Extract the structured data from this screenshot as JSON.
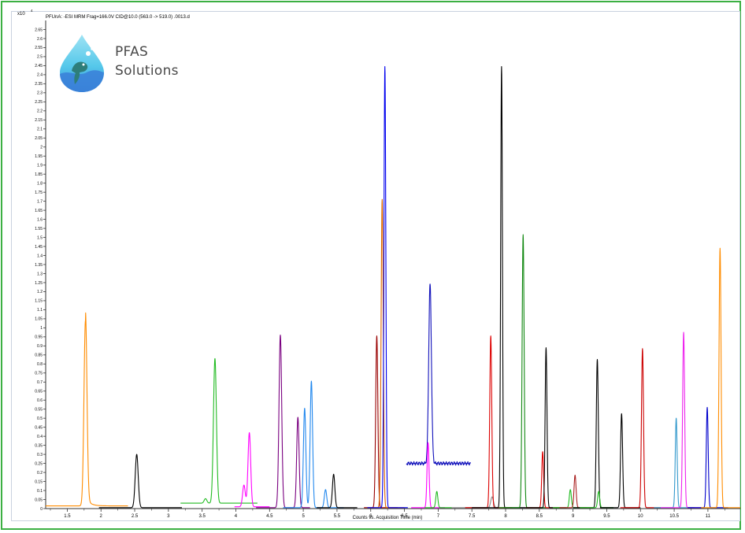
{
  "chart_title": "PFUnA: -ESI MRM Frag=166.0V CID@10.0 (563.0 -> 519.0) .0013.d",
  "y_multiplier": {
    "base": "x10",
    "exp": "4"
  },
  "logo": {
    "line1": "PFAS",
    "line2": "Solutions"
  },
  "colors": {
    "frame": "#3cb043",
    "axis": "#333333"
  },
  "chart_data": {
    "type": "line",
    "xlabel": "Counts vs. Acquisition Time (min)",
    "ylabel": "",
    "xlim": [
      1.18,
      11.48
    ],
    "ylim": [
      0,
      2.7
    ],
    "x_ticks": [
      "1.5",
      "2",
      "2.5",
      "3",
      "3.5",
      "4",
      "4.5",
      "5",
      "5.5",
      "6",
      "6.5",
      "7",
      "7.5",
      "8",
      "8.5",
      "9",
      "9.5",
      "10",
      "10.5",
      "11"
    ],
    "y_ticks": [
      "0",
      "0.05",
      "0.1",
      "0.15",
      "0.2",
      "0.25",
      "0.3",
      "0.35",
      "0.4",
      "0.45",
      "0.5",
      "0.55",
      "0.6",
      "0.65",
      "0.7",
      "0.75",
      "0.8",
      "0.85",
      "0.9",
      "0.95",
      "1",
      "1.05",
      "1.1",
      "1.15",
      "1.2",
      "1.25",
      "1.3",
      "1.35",
      "1.4",
      "1.45",
      "1.5",
      "1.55",
      "1.6",
      "1.65",
      "1.7",
      "1.75",
      "1.8",
      "1.85",
      "1.9",
      "1.95",
      "2",
      "2.05",
      "2.1",
      "2.15",
      "2.2",
      "2.25",
      "2.3",
      "2.35",
      "2.4",
      "2.45",
      "2.5",
      "2.55",
      "2.6",
      "2.65"
    ],
    "grid": false,
    "series": [
      {
        "color": "#ff8c00",
        "x_range": [
          1.18,
          2.4
        ],
        "baseline": 0.015,
        "peaks": [
          {
            "x": 1.77,
            "h": 1.025,
            "w": 0.022,
            "tail": 0.06
          }
        ]
      },
      {
        "color": "#000000",
        "x_range": [
          1.97,
          3.2
        ],
        "baseline": 0.005,
        "peaks": [
          {
            "x": 2.53,
            "h": 0.295,
            "w": 0.022
          }
        ]
      },
      {
        "color": "#22bb22",
        "x_range": [
          3.18,
          4.32
        ],
        "baseline": 0.03,
        "peaks": [
          {
            "x": 3.55,
            "h": 0.025,
            "w": 0.02
          },
          {
            "x": 3.69,
            "h": 0.8,
            "w": 0.022
          }
        ]
      },
      {
        "color": "#ff00ff",
        "x_range": [
          3.98,
          4.5
        ],
        "baseline": 0.01,
        "peaks": [
          {
            "x": 4.12,
            "h": 0.12,
            "w": 0.02
          },
          {
            "x": 4.2,
            "h": 0.41,
            "w": 0.02
          }
        ]
      },
      {
        "color": "#7a0080",
        "x_range": [
          4.3,
          5.1
        ],
        "baseline": 0.005,
        "peaks": [
          {
            "x": 4.66,
            "h": 0.955,
            "w": 0.02
          },
          {
            "x": 4.92,
            "h": 0.5,
            "w": 0.018
          }
        ]
      },
      {
        "color": "#2288ee",
        "x_range": [
          4.7,
          5.6
        ],
        "baseline": 0.005,
        "peaks": [
          {
            "x": 5.02,
            "h": 0.55,
            "w": 0.018
          },
          {
            "x": 5.12,
            "h": 0.7,
            "w": 0.018
          },
          {
            "x": 5.33,
            "h": 0.1,
            "w": 0.018
          }
        ]
      },
      {
        "color": "#000000",
        "x_range": [
          5.2,
          5.8
        ],
        "baseline": 0.005,
        "peaks": [
          {
            "x": 5.45,
            "h": 0.185,
            "w": 0.018
          }
        ]
      },
      {
        "color": "#990000",
        "x_range": [
          5.9,
          6.4
        ],
        "baseline": 0.005,
        "peaks": [
          {
            "x": 6.09,
            "h": 0.95,
            "w": 0.016
          }
        ]
      },
      {
        "color": "#dd6600",
        "x_range": [
          5.95,
          6.5
        ],
        "baseline": 0.005,
        "peaks": [
          {
            "x": 6.17,
            "h": 1.705,
            "w": 0.016
          }
        ]
      },
      {
        "color": "#0000ee",
        "x_range": [
          5.95,
          6.55
        ],
        "baseline": 0.005,
        "peaks": [
          {
            "x": 6.21,
            "h": 2.44,
            "w": 0.014
          }
        ]
      },
      {
        "color": "#1111bb",
        "x_range": [
          6.53,
          7.48
        ],
        "baseline": 0.25,
        "noise": 0.01,
        "peaks": [
          {
            "x": 6.88,
            "h": 0.99,
            "w": 0.02
          }
        ]
      },
      {
        "color": "#ff00ff",
        "x_range": [
          6.6,
          7.1
        ],
        "baseline": 0.005,
        "peaks": [
          {
            "x": 6.85,
            "h": 0.36,
            "w": 0.015
          }
        ]
      },
      {
        "color": "#22bb22",
        "x_range": [
          6.8,
          7.2
        ],
        "baseline": 0.005,
        "peaks": [
          {
            "x": 6.98,
            "h": 0.09,
            "w": 0.015
          }
        ]
      },
      {
        "color": "#888888",
        "x_range": [
          7.2,
          8.4
        ],
        "baseline": 0.005,
        "peaks": [
          {
            "x": 7.8,
            "h": 0.06,
            "w": 0.02
          }
        ]
      },
      {
        "color": "#dd0000",
        "x_range": [
          7.4,
          8.1
        ],
        "baseline": 0.005,
        "peaks": [
          {
            "x": 7.78,
            "h": 0.95,
            "w": 0.015
          }
        ]
      },
      {
        "color": "#000000",
        "x_range": [
          7.5,
          8.3
        ],
        "baseline": 0.005,
        "peaks": [
          {
            "x": 7.94,
            "h": 2.44,
            "w": 0.013
          }
        ]
      },
      {
        "color": "#118811",
        "x_range": [
          7.9,
          8.6
        ],
        "baseline": 0.005,
        "peaks": [
          {
            "x": 8.26,
            "h": 1.51,
            "w": 0.015
          }
        ]
      },
      {
        "color": "#dd0000",
        "x_range": [
          8.3,
          8.8
        ],
        "baseline": 0.005,
        "peaks": [
          {
            "x": 8.55,
            "h": 0.31,
            "w": 0.014
          }
        ]
      },
      {
        "color": "#000000",
        "x_range": [
          8.3,
          8.9
        ],
        "baseline": 0.005,
        "peaks": [
          {
            "x": 8.6,
            "h": 0.885,
            "w": 0.014
          }
        ]
      },
      {
        "color": "#22bb22",
        "x_range": [
          8.7,
          9.2
        ],
        "baseline": 0.005,
        "peaks": [
          {
            "x": 8.96,
            "h": 0.1,
            "w": 0.015
          }
        ]
      },
      {
        "color": "#aa2222",
        "x_range": [
          8.8,
          9.3
        ],
        "baseline": 0.005,
        "peaks": [
          {
            "x": 9.03,
            "h": 0.18,
            "w": 0.015
          }
        ]
      },
      {
        "color": "#000000",
        "x_range": [
          9.0,
          9.6
        ],
        "baseline": 0.005,
        "peaks": [
          {
            "x": 9.36,
            "h": 0.82,
            "w": 0.015
          }
        ]
      },
      {
        "color": "#22bb22",
        "x_range": [
          9.1,
          9.6
        ],
        "baseline": 0.005,
        "peaks": [
          {
            "x": 9.38,
            "h": 0.09,
            "w": 0.015
          }
        ]
      },
      {
        "color": "#000000",
        "x_range": [
          9.4,
          10.0
        ],
        "baseline": 0.005,
        "peaks": [
          {
            "x": 9.72,
            "h": 0.52,
            "w": 0.015
          }
        ]
      },
      {
        "color": "#cc0000",
        "x_range": [
          9.7,
          10.3
        ],
        "baseline": 0.005,
        "peaks": [
          {
            "x": 10.03,
            "h": 0.88,
            "w": 0.015
          }
        ]
      },
      {
        "color": "#3399cc",
        "x_range": [
          10.2,
          10.8
        ],
        "baseline": 0.005,
        "peaks": [
          {
            "x": 10.53,
            "h": 0.495,
            "w": 0.014
          }
        ]
      },
      {
        "color": "#ee22ee",
        "x_range": [
          10.3,
          10.9
        ],
        "baseline": 0.005,
        "peaks": [
          {
            "x": 10.64,
            "h": 0.97,
            "w": 0.015
          }
        ]
      },
      {
        "color": "#0000cc",
        "x_range": [
          10.7,
          11.3
        ],
        "baseline": 0.005,
        "peaks": [
          {
            "x": 10.99,
            "h": 0.555,
            "w": 0.014
          }
        ]
      },
      {
        "color": "#ff8c00",
        "x_range": [
          10.9,
          11.48
        ],
        "baseline": 0.005,
        "peaks": [
          {
            "x": 11.18,
            "h": 1.435,
            "w": 0.015
          }
        ]
      }
    ]
  }
}
